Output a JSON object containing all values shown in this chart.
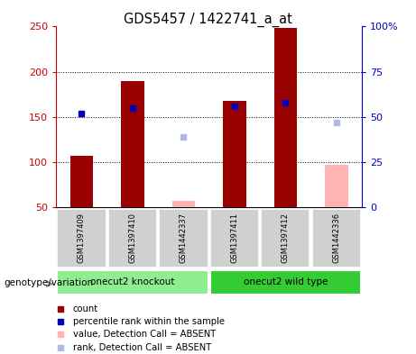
{
  "title": "GDS5457 / 1422741_a_at",
  "samples": [
    "GSM1397409",
    "GSM1397410",
    "GSM1442337",
    "GSM1397411",
    "GSM1397412",
    "GSM1442336"
  ],
  "count_values": [
    107,
    190,
    null,
    168,
    248,
    null
  ],
  "count_color": "#990000",
  "absent_value_values": [
    null,
    null,
    57,
    null,
    null,
    97
  ],
  "absent_value_color": "#ffb3b3",
  "percentile_values": [
    52,
    55,
    null,
    56,
    58,
    null
  ],
  "percentile_color": "#0000bb",
  "absent_rank_values": [
    null,
    null,
    39,
    null,
    null,
    47
  ],
  "absent_rank_color": "#b0b8e8",
  "ylim_left": [
    50,
    250
  ],
  "ylim_right": [
    0,
    100
  ],
  "yticks_left": [
    50,
    100,
    150,
    200,
    250
  ],
  "ytick_labels_left": [
    "50",
    "100",
    "150",
    "200",
    "250"
  ],
  "yticks_right": [
    0,
    25,
    50,
    75,
    100
  ],
  "ytick_labels_right": [
    "0",
    "25",
    "50",
    "75",
    "100%"
  ],
  "left_axis_color": "#cc0000",
  "right_axis_color": "#0000cc",
  "groups": [
    {
      "label": "onecut2 knockout",
      "indices": [
        0,
        1,
        2
      ],
      "color": "#90EE90"
    },
    {
      "label": "onecut2 wild type",
      "indices": [
        3,
        4,
        5
      ],
      "color": "#33cc33"
    }
  ],
  "group_label": "genotype/variation",
  "legend_items": [
    {
      "label": "count",
      "color": "#990000"
    },
    {
      "label": "percentile rank within the sample",
      "color": "#0000bb"
    },
    {
      "label": "value, Detection Call = ABSENT",
      "color": "#ffb3b3"
    },
    {
      "label": "rank, Detection Call = ABSENT",
      "color": "#b0b8e8"
    }
  ],
  "bar_width": 0.45,
  "bar_bottom": 50,
  "bg_color": "#d0d0d0"
}
